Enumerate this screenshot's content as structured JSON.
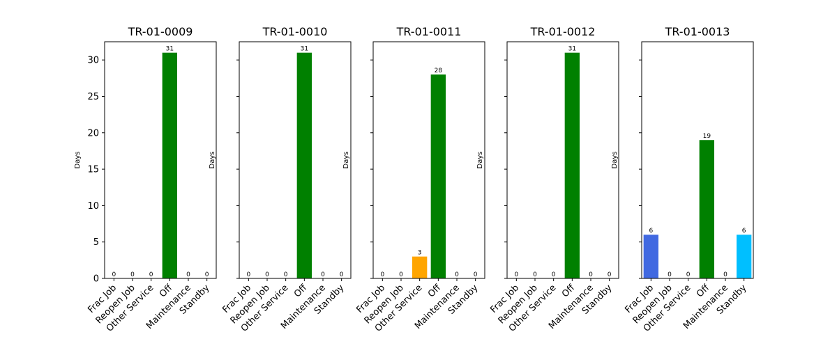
{
  "chart_data": {
    "type": "bar",
    "categories": [
      "Frac Job",
      "Reopen Job",
      "Other Service",
      "Off",
      "Maintenance",
      "Standby"
    ],
    "category_colors": [
      "#4169e1",
      "#808080",
      "#ffa500",
      "#008000",
      "#ff0000",
      "#00bfff"
    ],
    "ylabel": "Days",
    "ylim": [
      0,
      32.5
    ],
    "yticks": [
      0,
      5,
      10,
      15,
      20,
      25,
      30
    ],
    "sharey": true,
    "grid": false,
    "panels": [
      {
        "title": "TR-01-0009",
        "values": [
          0,
          0,
          0,
          31,
          0,
          0
        ]
      },
      {
        "title": "TR-01-0010",
        "values": [
          0,
          0,
          0,
          31,
          0,
          0
        ]
      },
      {
        "title": "TR-01-0011",
        "values": [
          0,
          0,
          3,
          28,
          0,
          0
        ]
      },
      {
        "title": "TR-01-0012",
        "values": [
          0,
          0,
          0,
          31,
          0,
          0
        ]
      },
      {
        "title": "TR-01-0013",
        "values": [
          6,
          0,
          0,
          19,
          0,
          6
        ]
      }
    ]
  }
}
